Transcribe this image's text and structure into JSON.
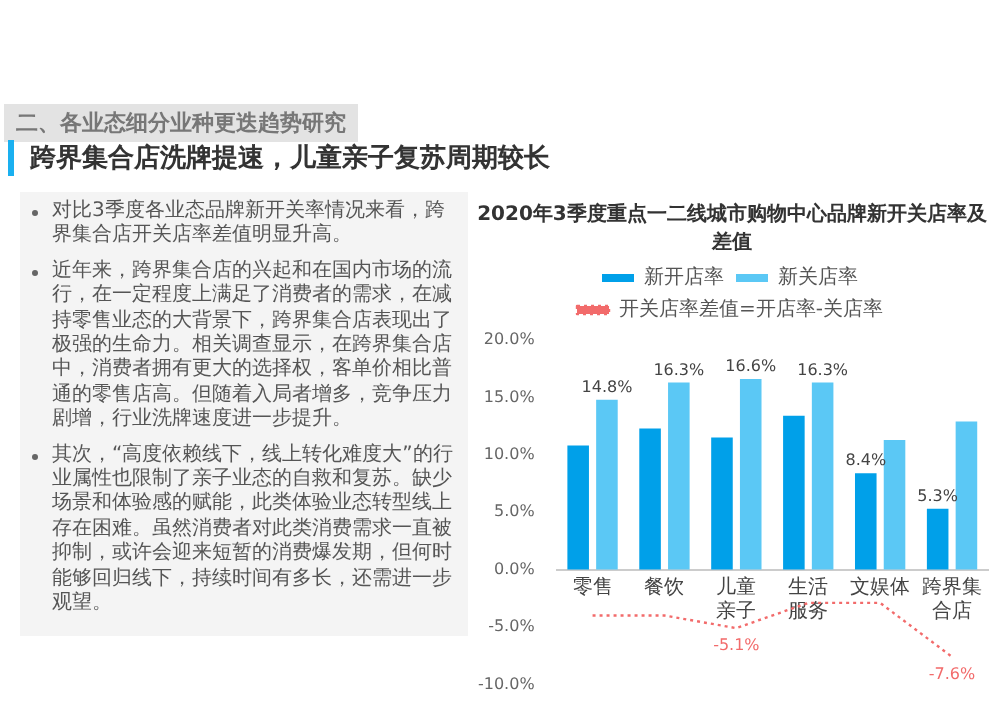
{
  "chart_data": {
    "type": "bar",
    "title": "2020年3季度重点一二线城市购物中心品牌新开关店率及差值",
    "categories": [
      "零售",
      "餐饮",
      "儿童亲子",
      "生活服务",
      "文娱体",
      "跨界集合店"
    ],
    "series": [
      {
        "name": "新开店率",
        "color": "#00a0e9",
        "values": [
          10.8,
          12.3,
          11.5,
          13.4,
          8.4,
          5.3
        ],
        "value_labels": [
          null,
          null,
          null,
          null,
          "8.4%",
          "5.3%"
        ]
      },
      {
        "name": "新关店率",
        "color": "#5bc8f5",
        "values": [
          14.8,
          16.3,
          16.6,
          16.3,
          11.3,
          12.9
        ],
        "value_labels": [
          "14.8%",
          "16.3%",
          "16.6%",
          "16.3%",
          null,
          null
        ]
      },
      {
        "name": "开关店率差值=开店率-关店率",
        "type": "line",
        "color": "#f26b6b",
        "line_style": "dotted",
        "marker": "none",
        "values": [
          -4.0,
          -4.0,
          -5.1,
          -2.9,
          -2.9,
          -7.6
        ],
        "value_labels": [
          null,
          null,
          "-5.1%",
          null,
          null,
          "-7.6%"
        ]
      }
    ],
    "ylim": [
      -10,
      20
    ],
    "yticks": [
      {
        "value": -10,
        "label": "-10.0%"
      },
      {
        "value": -5,
        "label": "-5.0%"
      },
      {
        "value": 0,
        "label": "0.0%"
      },
      {
        "value": 5,
        "label": "5.0%"
      },
      {
        "value": 10,
        "label": "10.0%"
      },
      {
        "value": 15,
        "label": "15.0%"
      },
      {
        "value": 20,
        "label": "20.0%"
      }
    ],
    "legend": "top",
    "annotations": [
      "二、各业态细分业种更迭趋势研究",
      "跨界集合店洗牌提速，儿童亲子复苏周期较长",
      "对比3季度各业态品牌新开关率情况来看，跨界集合店开关店率差值明显升高。",
      "近年来，跨界集合店的兴起和在国内市场的流行，在一定程度上满足了消费者的需求，在减持零售业态的大背景下，跨界集合店表现出了极强的生命力。相关调查显示，在跨界集合店中，消费者拥有更大的选择权，客单价相比普通的零售店高。但随着入局者增多，竞争压力剧增，行业洗牌速度进一步提升。",
      "其次，“高度依赖线下，线上转化难度大”的行业属性也限制了亲子业态的自救和复苏。缺少场景和体验感的赋能，此类体验业态转型线上存在困难。虽然消费者对此类消费需求一直被抑制，或许会迎来短暂的消费爆发期，但何时能够回归线下，持续时间有多长，还需进一步观望。"
    ]
  }
}
